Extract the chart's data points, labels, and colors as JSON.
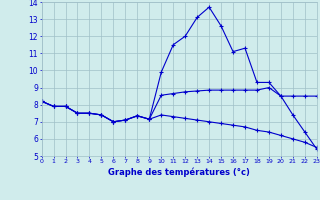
{
  "title": "Graphe des températures (°c)",
  "background_color": "#d0ecec",
  "grid_color": "#a0c0c8",
  "line_color": "#0000cc",
  "xlim": [
    0,
    23
  ],
  "ylim": [
    5,
    14
  ],
  "yticks": [
    5,
    6,
    7,
    8,
    9,
    10,
    11,
    12,
    13,
    14
  ],
  "xticks": [
    0,
    1,
    2,
    3,
    4,
    5,
    6,
    7,
    8,
    9,
    10,
    11,
    12,
    13,
    14,
    15,
    16,
    17,
    18,
    19,
    20,
    21,
    22,
    23
  ],
  "hours": [
    0,
    1,
    2,
    3,
    4,
    5,
    6,
    7,
    8,
    9,
    10,
    11,
    12,
    13,
    14,
    15,
    16,
    17,
    18,
    19,
    20,
    21,
    22,
    23
  ],
  "series_peak": [
    8.2,
    7.9,
    7.9,
    7.5,
    7.5,
    7.4,
    7.0,
    7.1,
    7.35,
    7.15,
    9.9,
    11.5,
    12.0,
    13.1,
    13.7,
    12.6,
    11.1,
    11.3,
    9.3,
    9.3,
    8.5,
    7.4,
    6.4,
    5.4
  ],
  "series_flat": [
    8.2,
    7.9,
    7.9,
    7.5,
    7.5,
    7.4,
    7.0,
    7.1,
    7.35,
    7.15,
    8.55,
    8.65,
    8.75,
    8.8,
    8.85,
    8.85,
    8.85,
    8.85,
    8.85,
    9.0,
    8.5,
    8.5,
    8.5,
    8.5
  ],
  "series_down": [
    8.2,
    7.9,
    7.9,
    7.5,
    7.5,
    7.4,
    7.0,
    7.1,
    7.35,
    7.15,
    7.4,
    7.3,
    7.2,
    7.1,
    7.0,
    6.9,
    6.8,
    6.7,
    6.5,
    6.4,
    6.2,
    6.0,
    5.8,
    5.5
  ]
}
